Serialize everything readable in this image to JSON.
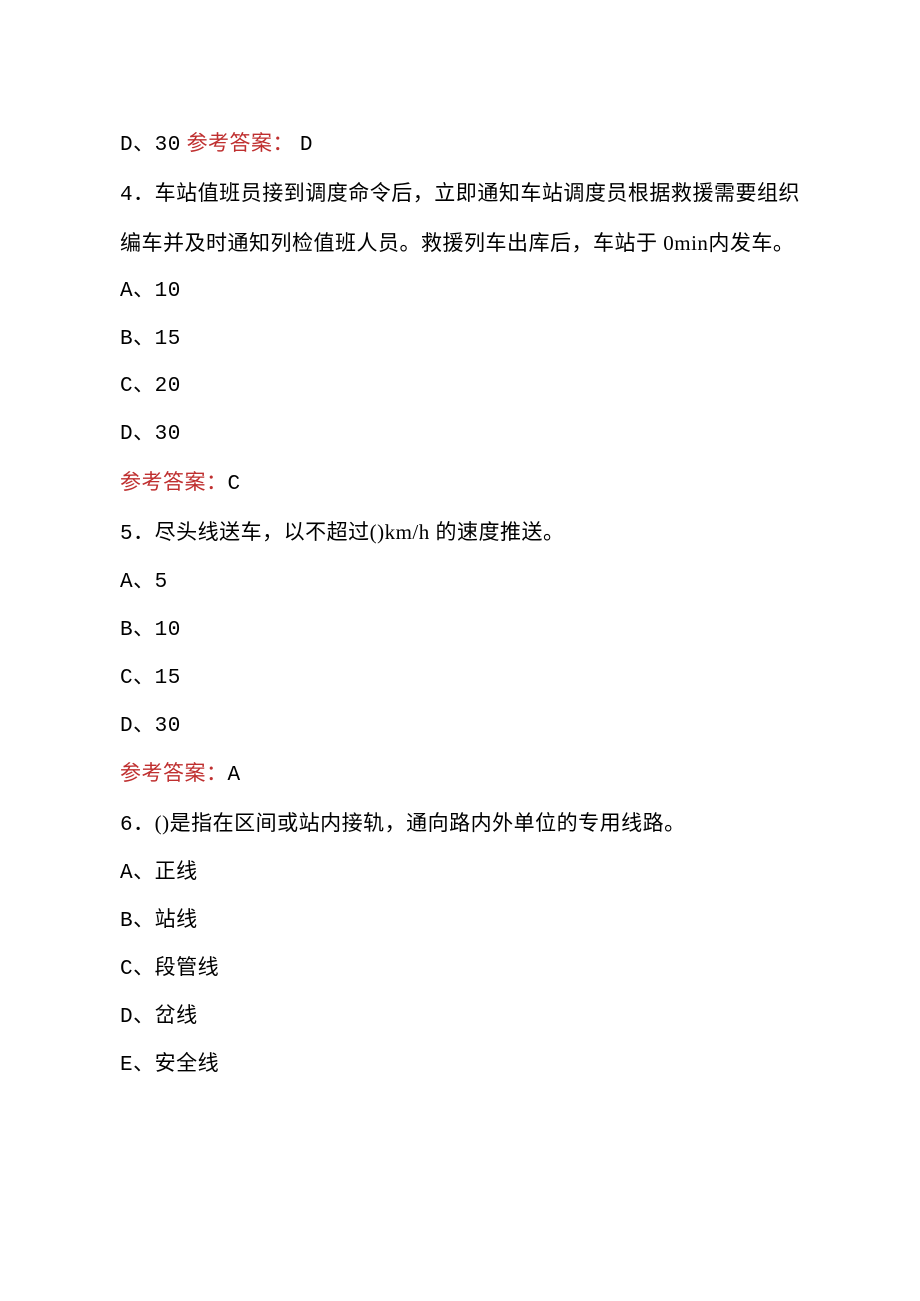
{
  "colors": {
    "text": "#000000",
    "answer": "#bf2f2f",
    "background": "#ffffff"
  },
  "typography": {
    "font_family": "SimSun",
    "font_size_pt": 16,
    "line_height": 2.28
  },
  "q3": {
    "option_d": "D、30",
    "answer_label": "参考答案：",
    "answer_value": "D"
  },
  "q4": {
    "number": "4",
    "stem": "．车站值班员接到调度命令后，立即通知车站调度员根据救援需要组织编车并及时通知列检值班人员。救援列车出库后，车站于 0min内发车。",
    "options": {
      "a": "A、10",
      "b": "B、15",
      "c": "C、20",
      "d": "D、30"
    },
    "answer_label": "参考答案：",
    "answer_value": "C"
  },
  "q5": {
    "number": "5",
    "stem": "．尽头线送车，以不超过()km/h 的速度推送。",
    "options": {
      "a": "A、5",
      "b": "B、10",
      "c": "C、15",
      "d": "D、30"
    },
    "answer_label": "参考答案：",
    "answer_value": "A"
  },
  "q6": {
    "number": "6",
    "stem": "．()是指在区间或站内接轨，通向路内外单位的专用线路。",
    "options": {
      "a": "A、正线",
      "b": "B、站线",
      "c": "C、段管线",
      "d": "D、岔线",
      "e": "E、安全线"
    }
  }
}
